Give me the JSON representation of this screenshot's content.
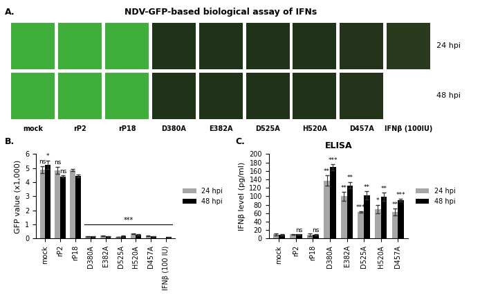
{
  "image_panel": {
    "label": "A.",
    "title": "NDV-GFP-based biological assay of IFNs",
    "columns": [
      "mock",
      "rP2",
      "rP18",
      "D380A",
      "E382A",
      "D525A",
      "H520A",
      "D457A",
      "IFNβ (100IU)"
    ],
    "rows": [
      "24 hpi",
      "48 hpi"
    ],
    "colors": [
      [
        "#3fae3a",
        "#3fae3a",
        "#3fae3a",
        "#1f3318",
        "#1f3318",
        "#1f3318",
        "#1f3318",
        "#23341a",
        "#2a3a1e"
      ],
      [
        "#3fae3a",
        "#3fae3a",
        "#3fae3a",
        "#1f3318",
        "#1f3318",
        "#1f3318",
        "#1f3318",
        "#23341a",
        null
      ]
    ]
  },
  "chart_data": [
    {
      "type": "bar",
      "label": "B.",
      "y_label": "GFP value (x1,000)",
      "categories": [
        "mock",
        "rP2",
        "rP18",
        "D380A",
        "E382A",
        "D525A",
        "H520A",
        "D457A",
        "IFNβ (100 IU)"
      ],
      "series": [
        {
          "name": "24 hpi",
          "color": "#a6a6a6",
          "values": [
            4.9,
            4.85,
            4.85,
            0.15,
            0.2,
            0.12,
            0.35,
            0.18,
            null
          ],
          "errors": [
            0.25,
            0.25,
            0.07,
            0.02,
            0.03,
            0.02,
            0.04,
            0.02,
            null
          ],
          "significance": [
            "ns",
            "ns",
            null,
            null,
            null,
            null,
            null,
            null,
            null
          ]
        },
        {
          "name": "48 hpi",
          "color": "#000000",
          "values": [
            5.25,
            4.4,
            4.45,
            0.15,
            0.15,
            0.17,
            0.25,
            0.15,
            0.1
          ],
          "errors": [
            0.3,
            0.07,
            0.1,
            0.02,
            0.02,
            0.03,
            0.05,
            0.02,
            0.01
          ],
          "significance": [
            "*",
            "ns",
            null,
            null,
            null,
            null,
            null,
            null,
            null
          ]
        }
      ],
      "bracket": {
        "from": "D380A",
        "to": "IFNβ (100 IU)",
        "label": "***"
      },
      "ylim": [
        0,
        6
      ],
      "yticks": [
        0,
        1,
        2,
        3,
        4,
        5,
        6
      ],
      "legend": "right"
    },
    {
      "type": "bar",
      "label": "C.",
      "title": "ELISA",
      "y_label": "IFNβ level (pg/ml)",
      "categories": [
        "mock",
        "rP2",
        "rP18",
        "D380A",
        "E382A",
        "D525A",
        "H520A",
        "D457A"
      ],
      "series": [
        {
          "name": "24 hpi",
          "color": "#a6a6a6",
          "values": [
            10,
            10,
            9,
            137,
            100,
            63,
            70,
            63
          ],
          "errors": [
            3,
            1,
            3,
            12,
            10,
            2,
            10,
            8
          ],
          "significance": [
            null,
            null,
            null,
            "**",
            "**",
            "***",
            "*",
            "**"
          ]
        },
        {
          "name": "48 hpi",
          "color": "#000000",
          "values": [
            9,
            10,
            9,
            169,
            126,
            102,
            99,
            91
          ],
          "errors": [
            2,
            1,
            2,
            7,
            8,
            10,
            10,
            3
          ],
          "significance": [
            null,
            "ns",
            "ns",
            "***",
            "**",
            "**",
            "**",
            "***"
          ]
        }
      ],
      "ylim": [
        0,
        200
      ],
      "yticks": [
        0,
        20,
        40,
        60,
        80,
        100,
        120,
        140,
        160,
        180,
        200
      ],
      "legend": "right"
    }
  ]
}
